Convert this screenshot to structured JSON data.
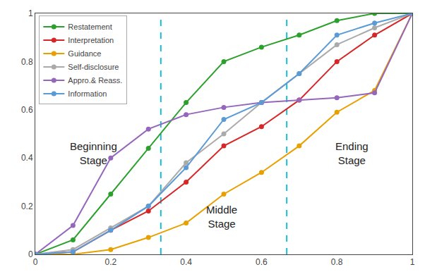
{
  "chart_data": {
    "type": "line",
    "x": [
      0.0,
      0.1,
      0.2,
      0.3,
      0.4,
      0.5,
      0.6,
      0.7,
      0.8,
      0.9,
      1.0
    ],
    "series": [
      {
        "name": "Restatement",
        "color": "#2ca02c",
        "marker": "circle",
        "values": [
          0.0,
          0.06,
          0.25,
          0.44,
          0.63,
          0.8,
          0.86,
          0.91,
          0.97,
          1.0,
          1.0
        ]
      },
      {
        "name": "Interpretation",
        "color": "#d62728",
        "marker": "circle",
        "values": [
          0.0,
          0.01,
          0.1,
          0.18,
          0.3,
          0.45,
          0.53,
          0.64,
          0.8,
          0.91,
          1.0
        ]
      },
      {
        "name": "Guidance",
        "color": "#e8a000",
        "marker": "circle",
        "values": [
          0.0,
          0.0,
          0.02,
          0.07,
          0.13,
          0.25,
          0.34,
          0.45,
          0.59,
          0.68,
          1.0
        ]
      },
      {
        "name": "Self-disclosure",
        "color": "#aaaaaa",
        "marker": "circle",
        "values": [
          0.0,
          0.02,
          0.11,
          0.2,
          0.38,
          0.5,
          0.63,
          0.75,
          0.87,
          0.94,
          1.0
        ]
      },
      {
        "name": "Appro.& Reass.",
        "color": "#9467bd",
        "marker": "circle",
        "values": [
          0.0,
          0.12,
          0.4,
          0.52,
          0.58,
          0.61,
          0.63,
          0.64,
          0.65,
          0.67,
          1.0
        ]
      },
      {
        "name": "Information",
        "color": "#5b9bd5",
        "marker": "circle",
        "values": [
          0.0,
          0.01,
          0.1,
          0.2,
          0.36,
          0.56,
          0.63,
          0.75,
          0.91,
          0.96,
          1.0
        ]
      }
    ],
    "vlines": [
      {
        "x": 0.333,
        "color": "#00bcd4",
        "line_style": "dash"
      },
      {
        "x": 0.667,
        "color": "#00bcd4",
        "line_style": "dash"
      }
    ],
    "annotations": [
      "Beginning\nStage",
      "Middle\nStage",
      "Ending\nStage"
    ],
    "xlim": [
      0.0,
      1.0
    ],
    "ylim": [
      0.0,
      1.0
    ],
    "xticks": [
      0.0,
      0.2,
      0.4,
      0.6,
      0.8,
      1.0
    ],
    "yticks": [
      0.0,
      0.2,
      0.4,
      0.6,
      0.8,
      1.0
    ],
    "grid": false,
    "legend": "upper left"
  }
}
